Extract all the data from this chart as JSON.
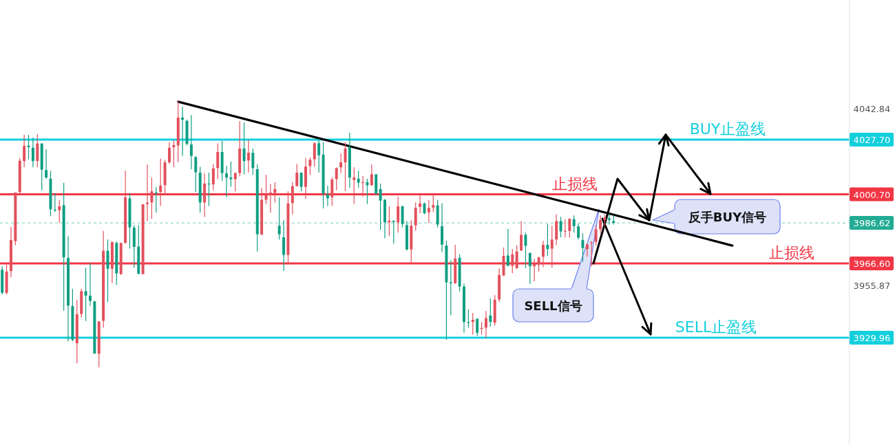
{
  "chart_data": {
    "type": "candlestick",
    "categories": [
      null,
      null,
      null,
      null,
      null,
      null,
      null,
      null,
      null,
      null,
      null,
      null,
      null,
      null,
      null,
      null,
      null,
      null,
      null,
      null,
      null,
      null,
      null,
      null,
      null,
      null,
      null,
      null,
      null,
      null,
      null,
      null,
      null,
      null,
      null,
      null,
      null,
      null,
      null,
      null,
      null,
      null,
      null,
      null,
      null,
      null,
      null,
      null,
      null,
      null,
      null,
      null,
      null,
      null,
      null,
      null,
      null,
      null,
      null,
      null,
      null,
      null,
      null,
      null,
      null,
      null,
      null,
      null,
      null,
      null,
      null,
      null,
      null,
      null,
      null,
      null,
      null,
      null,
      null,
      null,
      null,
      null,
      null,
      null,
      null,
      null,
      null,
      null,
      null,
      null,
      null,
      null,
      null,
      null,
      null,
      null,
      null,
      null,
      null,
      null,
      null,
      null,
      null,
      null,
      null,
      null,
      null,
      null,
      null,
      null,
      null,
      null,
      null,
      null,
      null,
      null,
      null,
      null,
      null,
      null,
      null,
      null,
      null,
      null,
      null,
      null,
      null,
      null,
      null,
      null,
      null,
      null,
      null,
      null,
      null,
      null,
      null,
      null,
      null,
      null,
      null,
      null,
      null,
      null,
      null,
      null,
      null,
      null,
      null,
      null,
      null,
      null,
      null,
      null,
      null,
      null,
      null,
      null,
      null,
      null,
      null,
      null,
      null,
      null,
      null,
      null,
      null,
      null,
      null,
      null,
      null,
      null,
      null,
      null,
      null,
      null,
      null,
      null,
      null,
      null,
      null,
      null,
      null,
      null,
      null,
      null,
      null,
      null,
      null,
      null,
      null,
      null,
      null
    ],
    "ohlc": [
      [
        3963.5,
        3965.2,
        3951.3,
        3952.1
      ],
      [
        3952.1,
        3966.0,
        3951.3,
        3962.6
      ],
      [
        3962.8,
        3984.6,
        3959.8,
        3978.2
      ],
      [
        3977.6,
        4001.6,
        3975.6,
        4001.6
      ],
      [
        4001.8,
        4018.6,
        4001.0,
        4017.3
      ],
      [
        4017.1,
        4030.1,
        4014.0,
        4024.6
      ],
      [
        4024.7,
        4030.1,
        4018.0,
        4024.0
      ],
      [
        4023.7,
        4028.7,
        4014.0,
        4017.1
      ],
      [
        4017.1,
        4030.4,
        4014.0,
        4025.8
      ],
      [
        4025.8,
        4025.8,
        4002.7,
        4012.9
      ],
      [
        4012.7,
        4022.9,
        4008.4,
        4009.0
      ],
      [
        4008.4,
        4012.3,
        3989.9,
        3993.3
      ],
      [
        3993.2,
        4001.3,
        3992.0,
        3992.9
      ],
      [
        3992.9,
        3997.9,
        3986.6,
        3994.8
      ],
      [
        3995.3,
        4006.4,
        3943.3,
        3969.6
      ],
      [
        3969.3,
        3980.1,
        3928.1,
        3945.8
      ],
      [
        3945.6,
        3954.1,
        3928.1,
        3928.9
      ],
      [
        3927.2,
        3948.7,
        3917.3,
        3941.5
      ],
      [
        3941.7,
        3954.1,
        3939.9,
        3952.9
      ],
      [
        3952.9,
        3964.5,
        3938.2,
        3950.7
      ],
      [
        3950.7,
        3966.9,
        3945.6,
        3948.1
      ],
      [
        3947.9,
        3948.1,
        3922.1,
        3922.1
      ],
      [
        3922.1,
        3938.0,
        3915.3,
        3938.0
      ],
      [
        3938.3,
        3982.6,
        3934.9,
        3972.8
      ],
      [
        3972.8,
        3978.4,
        3947.5,
        3964.0
      ],
      [
        3964.0,
        3977.2,
        3956.9,
        3977.2
      ],
      [
        3976.7,
        3977.5,
        3956.0,
        3961.7
      ],
      [
        3961.4,
        3976.7,
        3960.9,
        3976.7
      ],
      [
        3976.7,
        4012.3,
        3976.4,
        3999.2
      ],
      [
        3998.7,
        4001.3,
        3973.9,
        3984.4
      ],
      [
        3984.3,
        3985.5,
        3964.5,
        3974.8
      ],
      [
        3974.9,
        3985.5,
        3961.4,
        3961.4
      ],
      [
        3961.4,
        3995.8,
        3961.1,
        3995.8
      ],
      [
        3995.9,
        4015.4,
        3987.5,
        3996.6
      ],
      [
        3996.7,
        4009.0,
        3988.6,
        4002.2
      ],
      [
        4001.7,
        4004.3,
        3991.6,
        4001.4
      ],
      [
        4001.8,
        4018.3,
        3995.0,
        4005.0
      ],
      [
        4005.2,
        4017.7,
        4000.5,
        4016.5
      ],
      [
        4016.5,
        4026.5,
        4015.7,
        4023.7
      ],
      [
        4023.9,
        4027.6,
        4014.0,
        4025.0
      ],
      [
        4024.8,
        4046.8,
        4016.5,
        4038.6
      ],
      [
        4038.6,
        4043.7,
        4019.7,
        4037.5
      ],
      [
        4037.0,
        4037.5,
        4024.8,
        4025.6
      ],
      [
        4025.3,
        4039.8,
        4013.1,
        4019.7
      ],
      [
        4019.1,
        4019.5,
        4001.8,
        4011.6
      ],
      [
        4011.4,
        4014.3,
        3991.6,
        3996.7
      ],
      [
        3996.7,
        4011.0,
        3989.5,
        4006.0
      ],
      [
        4006.0,
        4011.4,
        3995.0,
        4005.6
      ],
      [
        4005.6,
        4015.7,
        4002.7,
        4013.5
      ],
      [
        4013.7,
        4025.9,
        4008.2,
        4021.6
      ],
      [
        4021.6,
        4027.0,
        4007.3,
        4011.2
      ],
      [
        4011.0,
        4014.8,
        3999.3,
        4009.0
      ],
      [
        4009.0,
        4016.9,
        4004.4,
        4008.2
      ],
      [
        4008.2,
        4011.4,
        4002.2,
        4011.2
      ],
      [
        4011.2,
        4036.9,
        4009.5,
        4023.3
      ],
      [
        4023.3,
        4036.1,
        4010.6,
        4017.1
      ],
      [
        4017.4,
        4027.6,
        4011.5,
        4021.2
      ],
      [
        4021.2,
        4023.3,
        4010.3,
        4013.7
      ],
      [
        4013.1,
        4015.6,
        3972.5,
        3981.0
      ],
      [
        3980.9,
        4003.9,
        3980.4,
        3997.9
      ],
      [
        3998.0,
        4010.3,
        3995.9,
        4000.5
      ],
      [
        4000.5,
        4005.9,
        3991.6,
        4001.6
      ],
      [
        4001.4,
        4006.7,
        3996.7,
        4003.3
      ],
      [
        3985.2,
        3999.2,
        3978.4,
        3981.0
      ],
      [
        3979.5,
        3988.0,
        3962.9,
        3970.8
      ],
      [
        3970.8,
        4002.2,
        3966.0,
        3996.2
      ],
      [
        3996.4,
        4006.7,
        3990.8,
        4004.7
      ],
      [
        4004.7,
        4015.7,
        4004.7,
        4011.4
      ],
      [
        4011.4,
        4011.5,
        4002.2,
        4004.4
      ],
      [
        4004.4,
        4018.6,
        3998.4,
        4014.4
      ],
      [
        4014.6,
        4018.8,
        4010.3,
        4017.8
      ],
      [
        4018.0,
        4026.5,
        4014.3,
        4025.9
      ],
      [
        4025.9,
        4028.2,
        4011.5,
        4020.0
      ],
      [
        4020.3,
        4026.5,
        3993.7,
        4001.0
      ],
      [
        4000.7,
        4005.0,
        3995.0,
        3998.8
      ],
      [
        3999.3,
        4009.0,
        3995.0,
        4008.0
      ],
      [
        4008.2,
        4014.0,
        4002.7,
        4013.6
      ],
      [
        4014.0,
        4020.8,
        4011.2,
        4016.5
      ],
      [
        4016.5,
        4026.5,
        4002.2,
        4023.3
      ],
      [
        4024.0,
        4031.0,
        4003.9,
        4009.0
      ],
      [
        4007.8,
        4014.0,
        3995.9,
        4009.0
      ],
      [
        4008.4,
        4012.3,
        4003.9,
        4006.5
      ],
      [
        4006.5,
        4009.7,
        3999.6,
        4006.7
      ],
      [
        4006.7,
        4008.4,
        3995.9,
        4005.2
      ],
      [
        4005.2,
        4015.4,
        4005.0,
        4010.6
      ],
      [
        4010.6,
        4010.6,
        4000.1,
        4001.0
      ],
      [
        4003.3,
        4006.1,
        3983.2,
        3997.6
      ],
      [
        3998.0,
        3998.4,
        3979.0,
        3986.9
      ],
      [
        3986.9,
        3994.8,
        3980.1,
        3987.7
      ],
      [
        3987.7,
        3987.7,
        3976.4,
        3987.1
      ],
      [
        3986.9,
        3999.6,
        3981.8,
        3994.8
      ],
      [
        3994.8,
        3995.0,
        3984.4,
        3986.1
      ],
      [
        3985.5,
        3987.5,
        3973.0,
        3973.5
      ],
      [
        3973.5,
        3988.0,
        3967.1,
        3985.2
      ],
      [
        3985.4,
        3996.7,
        3982.7,
        3994.0
      ],
      [
        3994.5,
        4000.5,
        3991.4,
        3996.2
      ],
      [
        3996.2,
        3996.7,
        3990.8,
        3991.4
      ],
      [
        3991.8,
        3997.9,
        3986.6,
        3994.0
      ],
      [
        3994.2,
        4000.5,
        3992.0,
        3995.4
      ],
      [
        3995.2,
        3997.9,
        3984.4,
        3985.8
      ],
      [
        3985.0,
        3996.3,
        3972.2,
        3975.9
      ],
      [
        3975.4,
        3977.9,
        3928.9,
        3957.3
      ],
      [
        3957.3,
        3968.2,
        3941.1,
        3956.8
      ],
      [
        3956.9,
        3975.8,
        3956.4,
        3969.0
      ],
      [
        3969.4,
        3971.1,
        3952.7,
        3955.2
      ],
      [
        3955.2,
        3956.7,
        3932.4,
        3937.7
      ],
      [
        3937.7,
        3943.9,
        3934.9,
        3937.4
      ],
      [
        3937.7,
        3942.2,
        3931.5,
        3938.8
      ],
      [
        3939.2,
        3939.6,
        3930.9,
        3932.4
      ],
      [
        3934.3,
        3937.7,
        3931.5,
        3934.8
      ],
      [
        3934.9,
        3943.1,
        3929.8,
        3939.6
      ],
      [
        3940.9,
        3949.3,
        3935.4,
        3937.7
      ],
      [
        3937.4,
        3951.0,
        3936.0,
        3948.7
      ],
      [
        3948.8,
        3964.3,
        3947.5,
        3960.9
      ],
      [
        3960.7,
        3974.5,
        3960.3,
        3970.3
      ],
      [
        3970.5,
        3983.7,
        3965.4,
        3965.4
      ],
      [
        3965.4,
        3973.7,
        3961.8,
        3971.1
      ],
      [
        3964.3,
        3975.6,
        3964.0,
        3972.5
      ],
      [
        3973.0,
        3987.5,
        3972.8,
        3980.7
      ],
      [
        3980.7,
        3981.8,
        3964.3,
        3975.3
      ],
      [
        3971.8,
        3971.8,
        3956.4,
        3965.2
      ],
      [
        3965.2,
        3968.8,
        3957.8,
        3966.2
      ],
      [
        3966.0,
        3969.9,
        3962.6,
        3969.6
      ],
      [
        3969.9,
        3977.8,
        3964.8,
        3975.8
      ],
      [
        3975.8,
        3986.1,
        3970.3,
        3973.7
      ],
      [
        3973.9,
        3985.2,
        3964.5,
        3978.4
      ],
      [
        3978.4,
        3990.8,
        3975.6,
        3987.5
      ],
      [
        3987.5,
        3989.7,
        3979.5,
        3982.4
      ],
      [
        3982.4,
        3988.3,
        3979.3,
        3982.7
      ],
      [
        3982.6,
        3988.8,
        3979.3,
        3988.6
      ],
      [
        3988.4,
        3990.3,
        3981.8,
        3985.0
      ],
      [
        3984.9,
        3986.3,
        3978.4,
        3979.3
      ],
      [
        3978.2,
        3981.5,
        3967.3,
        3974.2
      ],
      [
        3973.7,
        3976.1,
        3969.9,
        3976.1
      ],
      [
        3976.7,
        3977.5,
        3965.2,
        3977.1
      ],
      [
        3977.3,
        3985.4,
        3975.4,
        3983.5
      ],
      [
        3983.5,
        3990.3,
        3981.6,
        3988.0
      ],
      [
        3988.0,
        3990.8,
        3985.0,
        3989.2
      ],
      [
        3988.9,
        3991.1,
        3985.8,
        3988.0
      ],
      [
        3987.5,
        3990.3,
        3985.8,
        3986.6
      ],
      null,
      null,
      null,
      null,
      null,
      null,
      null,
      null,
      null,
      null,
      null,
      null,
      null,
      null,
      null,
      null,
      null,
      null,
      null,
      null,
      null,
      null,
      null,
      null,
      null,
      null,
      null,
      null,
      null,
      null,
      null,
      null,
      null,
      null,
      null,
      null,
      null,
      null,
      null,
      null,
      null,
      null,
      null,
      null,
      null,
      null,
      null,
      null,
      null,
      null,
      null,
      null,
      null
    ],
    "colors": [
      "#0f9e82",
      "#e2505c",
      "#e2505c",
      "#e2505c",
      "#e2505c",
      "#e2505c",
      "#0f9e82",
      "#0f9e82",
      "#e2505c",
      "#0f9e82",
      "#0f9e82",
      "#0f9e82",
      "#0f9e82",
      "#e2505c",
      "#0f9e82",
      "#0f9e82",
      "#0f9e82",
      "#e2505c",
      "#e2505c",
      "#0f9e82",
      "#0f9e82",
      "#0f9e82",
      "#e2505c",
      "#e2505c",
      "#0f9e82",
      "#e2505c",
      "#0f9e82",
      "#e2505c",
      "#e2505c",
      "#0f9e82",
      "#0f9e82",
      "#0f9e82",
      "#e2505c",
      "#e2505c",
      "#e2505c",
      "#0f9e82",
      "#e2505c",
      "#e2505c",
      "#e2505c",
      "#e2505c",
      "#e2505c",
      "#0f9e82",
      "#0f9e82",
      "#0f9e82",
      "#0f9e82",
      "#0f9e82",
      "#e2505c",
      "#0f9e82",
      "#e2505c",
      "#e2505c",
      "#0f9e82",
      "#0f9e82",
      "#0f9e82",
      "#e2505c",
      "#e2505c",
      "#0f9e82",
      "#e2505c",
      "#0f9e82",
      "#0f9e82",
      "#e2505c",
      "#e2505c",
      "#e2505c",
      "#e2505c",
      "#0f9e82",
      "#0f9e82",
      "#e2505c",
      "#e2505c",
      "#e2505c",
      "#0f9e82",
      "#e2505c",
      "#e2505c",
      "#e2505c",
      "#0f9e82",
      "#0f9e82",
      "#0f9e82",
      "#e2505c",
      "#e2505c",
      "#e2505c",
      "#e2505c",
      "#0f9e82",
      "#e2505c",
      "#0f9e82",
      "#e2505c",
      "#0f9e82",
      "#e2505c",
      "#0f9e82",
      "#0f9e82",
      "#0f9e82",
      "#e2505c",
      "#0f9e82",
      "#e2505c",
      "#0f9e82",
      "#0f9e82",
      "#e2505c",
      "#e2505c",
      "#e2505c",
      "#0f9e82",
      "#e2505c",
      "#e2505c",
      "#0f9e82",
      "#0f9e82",
      "#0f9e82",
      "#0f9e82",
      "#e2505c",
      "#0f9e82",
      "#0f9e82",
      "#0f9e82",
      "#e2505c",
      "#0f9e82",
      "#e2505c",
      "#e2505c",
      "#0f9e82",
      "#e2505c",
      "#e2505c",
      "#e2505c",
      "#0f9e82",
      "#e2505c",
      "#e2505c",
      "#e2505c",
      "#0f9e82",
      "#0f9e82",
      "#e2505c",
      "#e2505c",
      "#e2505c",
      "#0f9e82",
      "#e2505c",
      "#e2505c",
      "#0f9e82",
      "#e2505c",
      "#e2505c",
      "#0f9e82",
      "#0f9e82",
      "#0f9e82",
      "#e2505c",
      "#e2505c",
      "#e2505c",
      "#e2505c",
      "#e2505c",
      "#0f9e82",
      "#0f9e82",
      null,
      null,
      null,
      null,
      null,
      null,
      null,
      null,
      null,
      null,
      null,
      null,
      null,
      null,
      null,
      null,
      null,
      null,
      null,
      null,
      null,
      null,
      null,
      null,
      null,
      null,
      null,
      null,
      null,
      null,
      null,
      null,
      null,
      null,
      null,
      null,
      null,
      null,
      null,
      null,
      null,
      null,
      null,
      null,
      null,
      null,
      null,
      null,
      null,
      null,
      null,
      null,
      null
    ],
    "series": [
      {
        "type": "line",
        "color": "#000000",
        "values": [
          null,
          null,
          null,
          null,
          null,
          null,
          null,
          null,
          null,
          null,
          null,
          null,
          null,
          null,
          null,
          null,
          null,
          null,
          null,
          null,
          null,
          null,
          null,
          null,
          null,
          null,
          null,
          null,
          null,
          null,
          null,
          null,
          null,
          null,
          null,
          null,
          null,
          null,
          null,
          null,
          4046.4,
          null,
          null,
          null,
          null,
          null,
          null,
          null,
          null,
          null,
          null,
          null,
          null,
          null,
          null,
          null,
          null,
          null,
          null,
          null,
          null,
          null,
          null,
          null,
          null,
          null,
          null,
          null,
          null,
          null,
          null,
          null,
          null,
          null,
          null,
          null,
          null,
          null,
          null,
          null,
          null,
          null,
          null,
          null,
          null,
          null,
          null,
          null,
          null,
          null,
          null,
          null,
          null,
          null,
          null,
          null,
          null,
          null,
          null,
          null,
          null,
          null,
          null,
          null,
          null,
          null,
          null,
          null,
          null,
          null,
          null,
          null,
          null,
          null,
          null,
          null,
          null,
          null,
          null,
          null,
          null,
          null,
          null,
          null,
          null,
          null,
          null,
          null,
          null,
          null,
          null,
          null,
          null,
          null,
          null,
          null,
          null,
          null,
          null,
          null,
          null,
          null,
          null,
          null,
          null,
          null,
          null,
          null,
          null,
          null,
          null,
          null,
          null,
          null,
          null,
          null,
          null,
          null,
          null,
          null,
          null,
          null,
          null,
          null,
          null,
          null,
          3975.4,
          null,
          null,
          null,
          null,
          null,
          null,
          null,
          null,
          null,
          null,
          null,
          null,
          null,
          null,
          null,
          null,
          null,
          null,
          null,
          null,
          null,
          null,
          null,
          null,
          null,
          null
        ]
      }
    ],
    "ylim": [
      3877.0,
      4096.6
    ],
    "yticks": [
      4042.84,
      {
        "value": 4027.7,
        "label": "4027.70"
      },
      {
        "value": 4000.7,
        "label": "4000.70"
      },
      3986.62,
      {
        "value": 3966.6,
        "label": "3966.60"
      },
      3955.87,
      3929.96
    ],
    "tick_labels": "y",
    "ref_lines": [
      {
        "axis": "y",
        "value": 4027.7,
        "label": "BUY止盈线",
        "color": "#12cfdc"
      },
      {
        "axis": "y",
        "value": 4000.7,
        "label": "止损线",
        "color": "#f23645"
      },
      {
        "axis": "y",
        "value": 3966.6,
        "label": "止损线",
        "color": "#f23645"
      },
      {
        "axis": "y",
        "value": 3929.96,
        "label": "SELL止盈线",
        "color": "#12cfdc"
      },
      {
        "axis": "y",
        "value": 3986.62,
        "color": "#22ab94",
        "line_style": "dashed"
      }
    ],
    "annotations": [
      "SELL信号",
      "反手BUY信号"
    ]
  }
}
